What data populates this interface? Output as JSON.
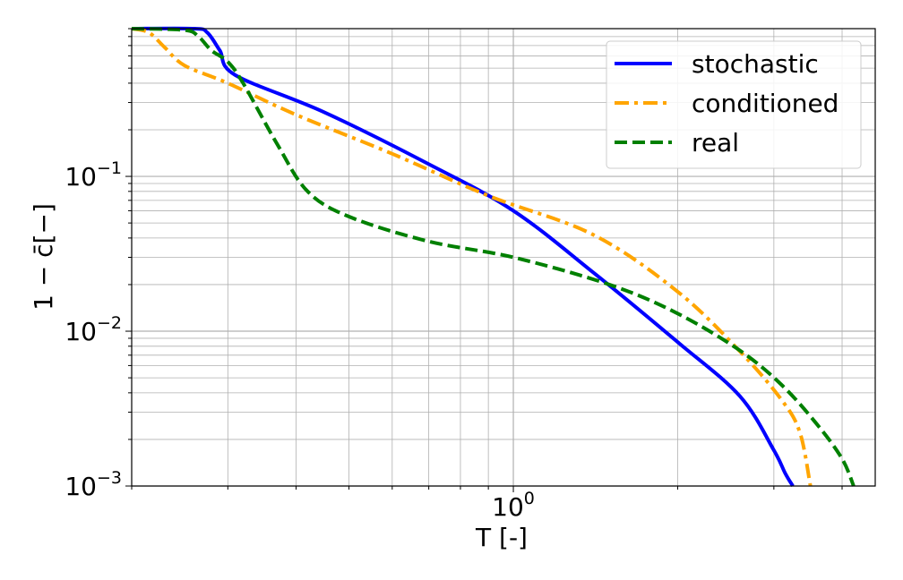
{
  "chart_data": {
    "type": "line",
    "xlabel": "T [-]",
    "ylabel": "1 − c̄[−]",
    "xscale": "log",
    "yscale": "log",
    "xlim": [
      0.2,
      4.6
    ],
    "ylim": [
      0.001,
      0.9
    ],
    "grid": true,
    "legend_position": "top-right",
    "x_ticks": [
      {
        "value": 1,
        "base": "10",
        "exp": "0"
      }
    ],
    "y_ticks": [
      {
        "value": 0.1,
        "base": "10",
        "exp": "−1"
      },
      {
        "value": 0.01,
        "base": "10",
        "exp": "−2"
      },
      {
        "value": 0.001,
        "base": "10",
        "exp": "−3"
      }
    ],
    "series": [
      {
        "name": "stochastic",
        "color": "#0000ff",
        "dash": "solid",
        "x": [
          0.2,
          0.26,
          0.275,
          0.29,
          0.31,
          0.45,
          0.7,
          1.0,
          1.4,
          2.0,
          2.6,
          3.0,
          3.15,
          3.25
        ],
        "y": [
          0.9,
          0.9,
          0.85,
          0.65,
          0.45,
          0.26,
          0.12,
          0.06,
          0.024,
          0.0085,
          0.0038,
          0.0017,
          0.0012,
          0.001
        ]
      },
      {
        "name": "conditioned",
        "color": "#ffa500",
        "dash": "dashdot",
        "x": [
          0.2,
          0.215,
          0.23,
          0.25,
          0.3,
          0.4,
          0.6,
          0.9,
          1.4,
          2.0,
          2.6,
          3.1,
          3.35,
          3.5
        ],
        "y": [
          0.9,
          0.85,
          0.68,
          0.52,
          0.4,
          0.25,
          0.14,
          0.075,
          0.042,
          0.018,
          0.0074,
          0.0036,
          0.0022,
          0.001
        ]
      },
      {
        "name": "real",
        "color": "#008000",
        "dash": "dashed",
        "x": [
          0.2,
          0.25,
          0.265,
          0.28,
          0.3,
          0.32,
          0.37,
          0.42,
          0.5,
          0.7,
          1.0,
          1.5,
          2.0,
          2.6,
          3.1,
          3.6,
          4.0,
          4.2
        ],
        "y": [
          0.9,
          0.88,
          0.8,
          0.65,
          0.55,
          0.4,
          0.16,
          0.08,
          0.055,
          0.038,
          0.03,
          0.02,
          0.013,
          0.0075,
          0.0045,
          0.0025,
          0.0015,
          0.001
        ]
      }
    ]
  }
}
